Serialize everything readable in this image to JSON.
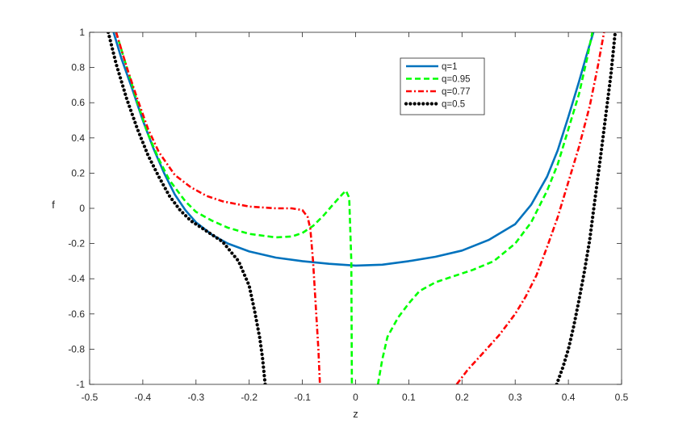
{
  "chart_data": {
    "type": "line",
    "title": "",
    "xlabel": "z",
    "ylabel": "f",
    "xlim": [
      -0.5,
      0.5
    ],
    "ylim": [
      -1,
      1
    ],
    "xticks": [
      "-0.5",
      "-0.4",
      "-0.3",
      "-0.2",
      "-0.1",
      "0",
      "0.1",
      "0.2",
      "0.3",
      "0.4",
      "0.5"
    ],
    "yticks": [
      "-1",
      "-0.8",
      "-0.6",
      "-0.4",
      "-0.2",
      "0",
      "0.2",
      "0.4",
      "0.6",
      "0.8",
      "1"
    ],
    "grid": false,
    "legend_position": "top-right",
    "series": [
      {
        "name": "q=1",
        "color": "#0072BD",
        "style": "solid",
        "segments": [
          [
            [
              -0.455,
              1.0
            ],
            [
              -0.44,
              0.85
            ],
            [
              -0.42,
              0.68
            ],
            [
              -0.4,
              0.5
            ],
            [
              -0.38,
              0.34
            ],
            [
              -0.36,
              0.2
            ],
            [
              -0.34,
              0.08
            ],
            [
              -0.32,
              -0.01
            ],
            [
              -0.3,
              -0.08
            ],
            [
              -0.27,
              -0.15
            ],
            [
              -0.24,
              -0.2
            ],
            [
              -0.2,
              -0.245
            ],
            [
              -0.15,
              -0.28
            ],
            [
              -0.1,
              -0.3
            ],
            [
              -0.05,
              -0.315
            ],
            [
              0.0,
              -0.325
            ],
            [
              0.05,
              -0.32
            ],
            [
              0.1,
              -0.3
            ],
            [
              0.15,
              -0.275
            ],
            [
              0.2,
              -0.24
            ],
            [
              0.25,
              -0.18
            ],
            [
              0.3,
              -0.09
            ],
            [
              0.33,
              0.02
            ],
            [
              0.36,
              0.18
            ],
            [
              0.38,
              0.33
            ],
            [
              0.4,
              0.52
            ],
            [
              0.42,
              0.72
            ],
            [
              0.435,
              0.88
            ],
            [
              0.447,
              1.0
            ]
          ]
        ]
      },
      {
        "name": "q=0.95",
        "color": "#00FF00",
        "style": "dashed",
        "segments": [
          [
            [
              -0.45,
              1.0
            ],
            [
              -0.43,
              0.8
            ],
            [
              -0.41,
              0.6
            ],
            [
              -0.39,
              0.42
            ],
            [
              -0.37,
              0.28
            ],
            [
              -0.35,
              0.16
            ],
            [
              -0.32,
              0.04
            ],
            [
              -0.3,
              -0.02
            ],
            [
              -0.27,
              -0.07
            ],
            [
              -0.24,
              -0.11
            ],
            [
              -0.2,
              -0.145
            ],
            [
              -0.15,
              -0.165
            ],
            [
              -0.12,
              -0.16
            ],
            [
              -0.1,
              -0.14
            ],
            [
              -0.08,
              -0.1
            ],
            [
              -0.06,
              -0.04
            ],
            [
              -0.04,
              0.03
            ],
            [
              -0.025,
              0.08
            ],
            [
              -0.018,
              0.1
            ],
            [
              -0.012,
              0.06
            ],
            [
              -0.008,
              -0.3
            ],
            [
              -0.007,
              -1.0
            ]
          ],
          [
            [
              0.042,
              -1.0
            ],
            [
              0.05,
              -0.86
            ],
            [
              0.06,
              -0.73
            ],
            [
              0.08,
              -0.62
            ],
            [
              0.1,
              -0.54
            ],
            [
              0.12,
              -0.47
            ],
            [
              0.15,
              -0.42
            ],
            [
              0.18,
              -0.39
            ],
            [
              0.22,
              -0.35
            ],
            [
              0.26,
              -0.3
            ],
            [
              0.3,
              -0.2
            ],
            [
              0.33,
              -0.08
            ],
            [
              0.36,
              0.1
            ],
            [
              0.38,
              0.25
            ],
            [
              0.4,
              0.45
            ],
            [
              0.42,
              0.65
            ],
            [
              0.435,
              0.85
            ],
            [
              0.445,
              1.0
            ]
          ]
        ]
      },
      {
        "name": "q=0.77",
        "color": "#FF0000",
        "style": "dashdot",
        "segments": [
          [
            [
              -0.45,
              1.0
            ],
            [
              -0.43,
              0.8
            ],
            [
              -0.41,
              0.62
            ],
            [
              -0.39,
              0.45
            ],
            [
              -0.37,
              0.32
            ],
            [
              -0.34,
              0.19
            ],
            [
              -0.31,
              0.12
            ],
            [
              -0.28,
              0.07
            ],
            [
              -0.25,
              0.04
            ],
            [
              -0.2,
              0.01
            ],
            [
              -0.15,
              0.0
            ],
            [
              -0.12,
              0.0
            ],
            [
              -0.1,
              -0.01
            ],
            [
              -0.09,
              -0.05
            ],
            [
              -0.085,
              -0.12
            ],
            [
              -0.08,
              -0.3
            ],
            [
              -0.075,
              -0.55
            ],
            [
              -0.07,
              -0.8
            ],
            [
              -0.067,
              -1.0
            ]
          ],
          [
            [
              0.19,
              -1.0
            ],
            [
              0.21,
              -0.92
            ],
            [
              0.24,
              -0.82
            ],
            [
              0.27,
              -0.72
            ],
            [
              0.3,
              -0.6
            ],
            [
              0.32,
              -0.5
            ],
            [
              0.34,
              -0.38
            ],
            [
              0.36,
              -0.22
            ],
            [
              0.38,
              -0.05
            ],
            [
              0.4,
              0.15
            ],
            [
              0.42,
              0.35
            ],
            [
              0.44,
              0.58
            ],
            [
              0.455,
              0.8
            ],
            [
              0.467,
              1.0
            ]
          ]
        ]
      },
      {
        "name": "q=0.5",
        "color": "#000000",
        "style": "dotted",
        "segments": [
          [
            [
              -0.465,
              1.0
            ],
            [
              -0.45,
              0.82
            ],
            [
              -0.43,
              0.62
            ],
            [
              -0.41,
              0.45
            ],
            [
              -0.39,
              0.3
            ],
            [
              -0.37,
              0.18
            ],
            [
              -0.35,
              0.07
            ],
            [
              -0.33,
              -0.01
            ],
            [
              -0.31,
              -0.07
            ],
            [
              -0.28,
              -0.13
            ],
            [
              -0.25,
              -0.19
            ],
            [
              -0.22,
              -0.3
            ],
            [
              -0.2,
              -0.44
            ],
            [
              -0.19,
              -0.58
            ],
            [
              -0.18,
              -0.74
            ],
            [
              -0.175,
              -0.85
            ],
            [
              -0.17,
              -1.0
            ]
          ],
          [
            [
              0.378,
              -1.0
            ],
            [
              0.39,
              -0.9
            ],
            [
              0.4,
              -0.8
            ],
            [
              0.41,
              -0.67
            ],
            [
              0.42,
              -0.52
            ],
            [
              0.43,
              -0.36
            ],
            [
              0.44,
              -0.18
            ],
            [
              0.45,
              0.05
            ],
            [
              0.46,
              0.28
            ],
            [
              0.47,
              0.52
            ],
            [
              0.48,
              0.76
            ],
            [
              0.488,
              1.0
            ]
          ]
        ]
      }
    ]
  }
}
